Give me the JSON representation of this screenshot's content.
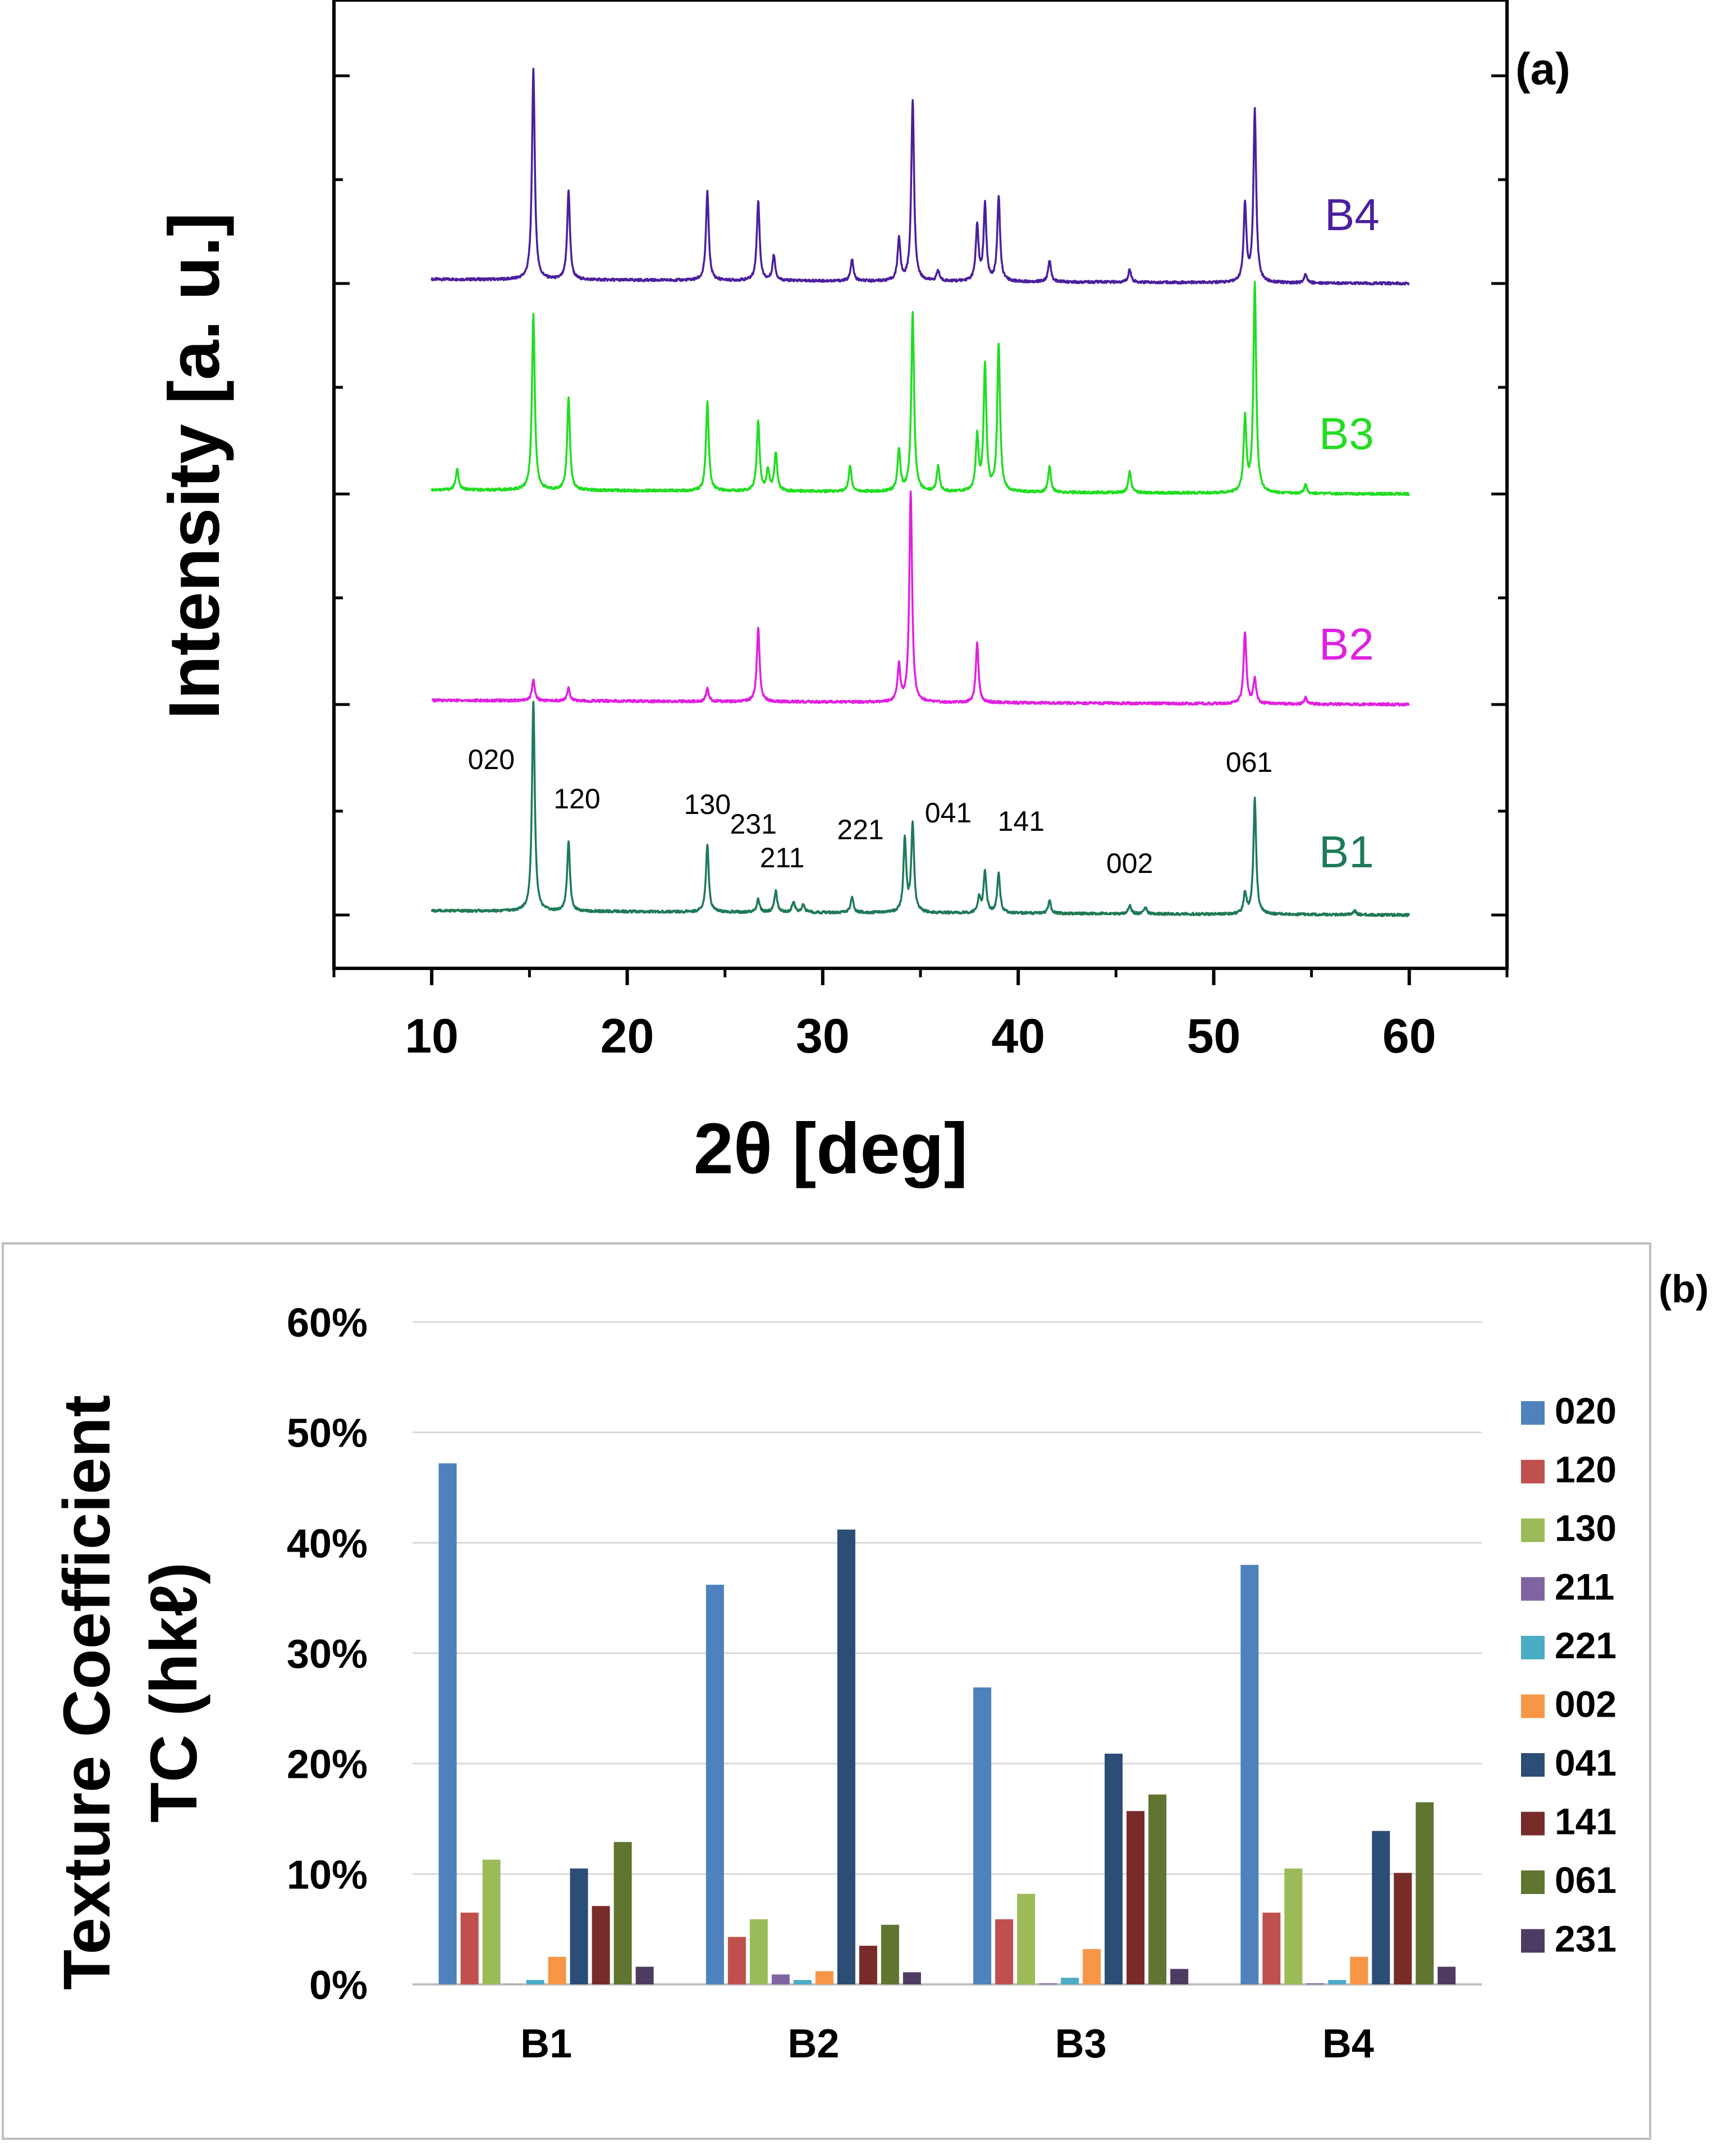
{
  "chart_data": [
    {
      "type": "line",
      "panel_label": "(a)",
      "xlabel": "2θ [deg]",
      "ylabel": "Intensity [a. u.]",
      "xlim": [
        5,
        65
      ],
      "xticks": [
        10,
        20,
        30,
        40,
        50,
        60
      ],
      "grid": false,
      "legend": "series labels printed at right end of each trace",
      "series": [
        {
          "name": "B4",
          "color": "#4b1f9e",
          "peaks": [
            [
              15.2,
              1.0
            ],
            [
              17.0,
              0.42
            ],
            [
              24.1,
              0.42
            ],
            [
              26.7,
              0.38
            ],
            [
              27.5,
              0.12
            ],
            [
              31.5,
              0.1
            ],
            [
              33.9,
              0.2
            ],
            [
              34.6,
              0.86
            ],
            [
              35.9,
              0.05
            ],
            [
              37.9,
              0.26
            ],
            [
              38.3,
              0.36
            ],
            [
              39.0,
              0.4
            ],
            [
              41.6,
              0.1
            ],
            [
              45.7,
              0.06
            ],
            [
              51.6,
              0.37
            ],
            [
              52.1,
              0.82
            ],
            [
              54.7,
              0.04
            ]
          ]
        },
        {
          "name": "B3",
          "color": "#22dd22",
          "peaks": [
            [
              11.3,
              0.1
            ],
            [
              15.2,
              0.84
            ],
            [
              17.0,
              0.44
            ],
            [
              24.1,
              0.42
            ],
            [
              26.7,
              0.33
            ],
            [
              27.2,
              0.1
            ],
            [
              27.6,
              0.18
            ],
            [
              31.4,
              0.12
            ],
            [
              33.9,
              0.2
            ],
            [
              34.6,
              0.85
            ],
            [
              35.9,
              0.12
            ],
            [
              37.9,
              0.26
            ],
            [
              38.3,
              0.6
            ],
            [
              39.0,
              0.7
            ],
            [
              41.6,
              0.12
            ],
            [
              45.7,
              0.1
            ],
            [
              51.6,
              0.35
            ],
            [
              52.1,
              1.0
            ],
            [
              54.7,
              0.04
            ]
          ]
        },
        {
          "name": "B2",
          "color": "#e020e0",
          "peaks": [
            [
              15.2,
              0.1
            ],
            [
              17.0,
              0.06
            ],
            [
              24.1,
              0.06
            ],
            [
              26.7,
              0.35
            ],
            [
              33.9,
              0.17
            ],
            [
              34.5,
              1.0
            ],
            [
              37.9,
              0.28
            ],
            [
              51.6,
              0.34
            ],
            [
              52.1,
              0.12
            ],
            [
              54.7,
              0.03
            ]
          ]
        },
        {
          "name": "B1",
          "color": "#1f7a55",
          "peaks": [
            [
              15.2,
              1.0
            ],
            [
              17.0,
              0.33
            ],
            [
              24.1,
              0.32
            ],
            [
              26.7,
              0.06
            ],
            [
              27.6,
              0.1
            ],
            [
              28.5,
              0.05
            ],
            [
              29.0,
              0.04
            ],
            [
              31.5,
              0.07
            ],
            [
              34.2,
              0.35
            ],
            [
              34.6,
              0.42
            ],
            [
              38.0,
              0.07
            ],
            [
              38.3,
              0.2
            ],
            [
              39.0,
              0.19
            ],
            [
              41.6,
              0.06
            ],
            [
              45.7,
              0.04
            ],
            [
              46.5,
              0.03
            ],
            [
              51.6,
              0.1
            ],
            [
              52.1,
              0.55
            ],
            [
              57.2,
              0.02
            ]
          ]
        }
      ],
      "annotations": [
        {
          "text": "020",
          "x": 15.2
        },
        {
          "text": "120",
          "x": 17.0
        },
        {
          "text": "130",
          "x": 24.1
        },
        {
          "text": "231",
          "x": 27.6
        },
        {
          "text": "211",
          "x": 28.5
        },
        {
          "text": "221",
          "x": 31.5
        },
        {
          "text": "041",
          "x": 38.0
        },
        {
          "text": "141",
          "x": 39.0
        },
        {
          "text": "002",
          "x": 45.7
        },
        {
          "text": "061",
          "x": 52.1
        }
      ]
    },
    {
      "type": "bar",
      "panel_label": "(b)",
      "title": "",
      "ylabel_line1": "Texture Coefficient",
      "ylabel_line2": "TC (hkℓ)",
      "xlabel": "",
      "ylim": [
        0,
        60
      ],
      "yticks": [
        "0%",
        "10%",
        "20%",
        "30%",
        "40%",
        "50%",
        "60%"
      ],
      "grid": true,
      "legend": "right",
      "categories": [
        "B1",
        "B2",
        "B3",
        "B4"
      ],
      "series": [
        {
          "name": "020",
          "color": "#4f81bd",
          "values": [
            47.2,
            36.2,
            26.9,
            38.0
          ]
        },
        {
          "name": "120",
          "color": "#c0504d",
          "values": [
            6.5,
            4.3,
            5.9,
            6.5
          ]
        },
        {
          "name": "130",
          "color": "#9bbb59",
          "values": [
            11.3,
            5.9,
            8.2,
            10.5
          ]
        },
        {
          "name": "211",
          "color": "#8064a2",
          "values": [
            0.0,
            0.9,
            0.1,
            0.1
          ]
        },
        {
          "name": "221",
          "color": "#4bacc6",
          "values": [
            0.4,
            0.4,
            0.6,
            0.4
          ]
        },
        {
          "name": "002",
          "color": "#f79646",
          "values": [
            2.5,
            1.2,
            3.2,
            2.5
          ]
        },
        {
          "name": "041",
          "color": "#2c4d75",
          "values": [
            10.5,
            41.2,
            20.9,
            13.9
          ]
        },
        {
          "name": "141",
          "color": "#772c2a",
          "values": [
            7.1,
            3.5,
            15.7,
            10.1
          ]
        },
        {
          "name": "061",
          "color": "#5f7530",
          "values": [
            12.9,
            5.4,
            17.2,
            16.5
          ]
        },
        {
          "name": "231",
          "color": "#4d3b62",
          "values": [
            1.6,
            1.1,
            1.4,
            1.6
          ]
        }
      ]
    }
  ]
}
